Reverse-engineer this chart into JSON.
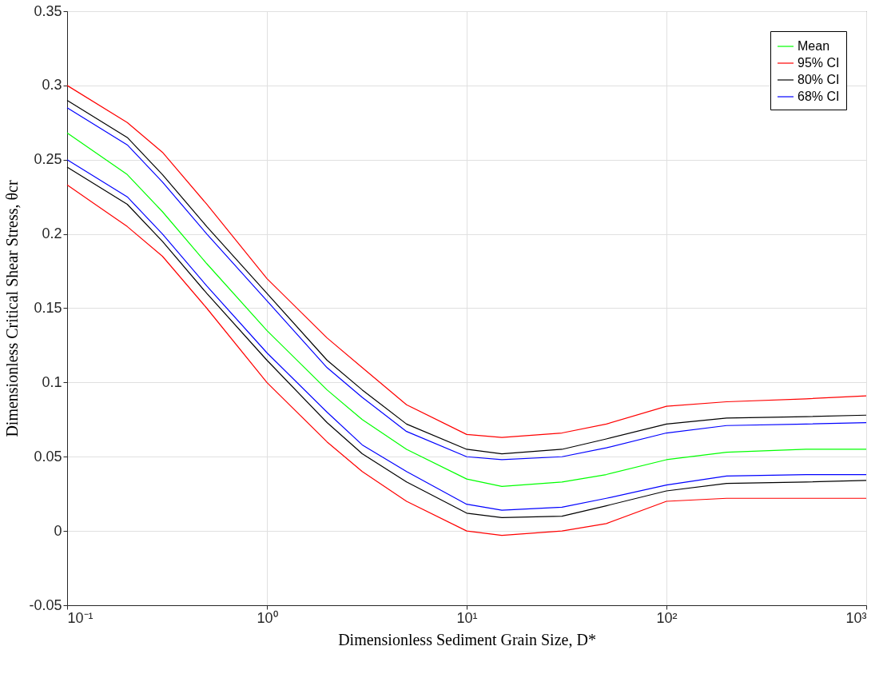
{
  "chart_data": {
    "type": "line",
    "xlabel": "Dimensionless Sediment Grain Size, D*",
    "ylabel": "Dimensionless Critical Shear Stress, θcr",
    "x": [
      0.1,
      0.2,
      0.3,
      0.5,
      1,
      2,
      3,
      5,
      10,
      15,
      30,
      50,
      100,
      200,
      500,
      1000
    ],
    "series": [
      {
        "name": "Mean",
        "color": "#00ff00",
        "values": [
          0.268,
          0.24,
          0.215,
          0.18,
          0.135,
          0.095,
          0.075,
          0.055,
          0.035,
          0.03,
          0.033,
          0.038,
          0.048,
          0.053,
          0.055,
          0.055
        ]
      },
      {
        "name": "95% CI",
        "color": "#ff0000",
        "values": [
          0.3,
          0.275,
          0.255,
          0.22,
          0.17,
          0.13,
          0.11,
          0.085,
          0.065,
          0.063,
          0.066,
          0.072,
          0.084,
          0.087,
          0.089,
          0.091
        ]
      },
      {
        "name": "80% CI",
        "color": "#000000",
        "values": [
          0.29,
          0.265,
          0.24,
          0.205,
          0.16,
          0.115,
          0.095,
          0.072,
          0.055,
          0.052,
          0.055,
          0.062,
          0.072,
          0.076,
          0.077,
          0.078
        ]
      },
      {
        "name": "68% CI",
        "color": "#0000ff",
        "values": [
          0.285,
          0.26,
          0.235,
          0.2,
          0.155,
          0.11,
          0.09,
          0.067,
          0.05,
          0.048,
          0.05,
          0.056,
          0.066,
          0.071,
          0.072,
          0.073
        ]
      },
      {
        "color": "#0000ff",
        "values": [
          0.25,
          0.225,
          0.2,
          0.165,
          0.12,
          0.08,
          0.058,
          0.04,
          0.018,
          0.014,
          0.016,
          0.022,
          0.031,
          0.037,
          0.038,
          0.038
        ]
      },
      {
        "color": "#000000",
        "values": [
          0.245,
          0.22,
          0.195,
          0.16,
          0.115,
          0.073,
          0.052,
          0.033,
          0.012,
          0.009,
          0.01,
          0.017,
          0.027,
          0.032,
          0.033,
          0.034
        ]
      },
      {
        "color": "#ff0000",
        "values": [
          0.233,
          0.205,
          0.185,
          0.15,
          0.1,
          0.06,
          0.04,
          0.02,
          0.0,
          -0.003,
          0.0,
          0.005,
          0.02,
          0.022,
          0.022,
          0.022
        ]
      }
    ],
    "xlim": [
      0.1,
      1000
    ],
    "xticks": [
      {
        "value": 0.1,
        "label": "10⁻¹"
      },
      {
        "value": 1,
        "label": "10⁰"
      },
      {
        "value": 10,
        "label": "10¹"
      },
      {
        "value": 100,
        "label": "10²"
      },
      {
        "value": 1000,
        "label": "10³"
      }
    ],
    "ylim": [
      -0.05,
      0.35
    ],
    "yticks": [
      -0.05,
      0,
      0.05,
      0.1,
      0.15,
      0.2,
      0.25,
      0.3,
      0.35
    ],
    "log": "x",
    "grid": true,
    "legend": "top right",
    "marker": "none",
    "line_style": "solid"
  }
}
